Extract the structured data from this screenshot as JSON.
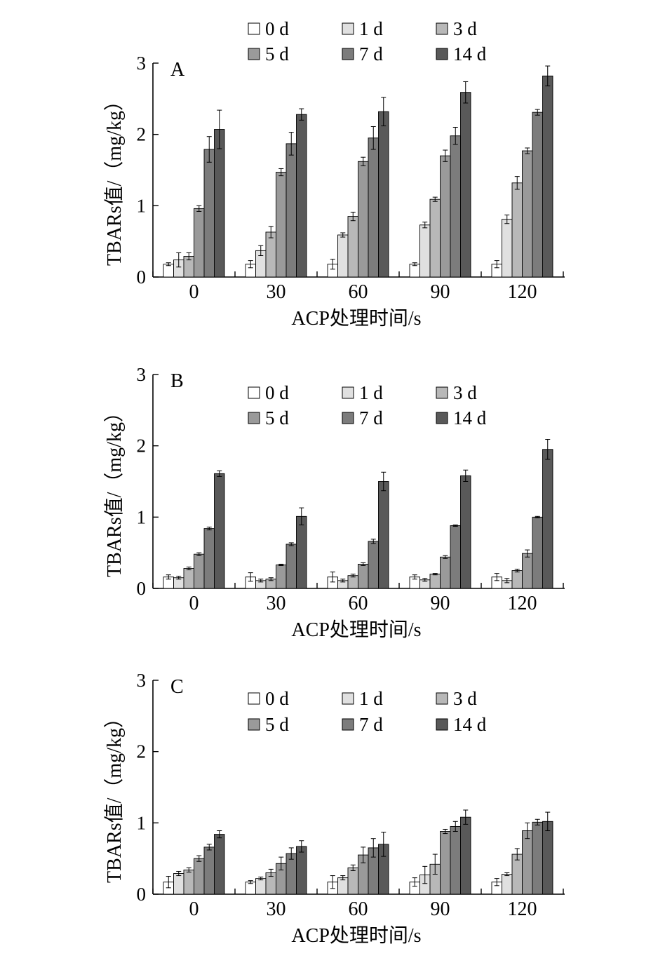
{
  "chart_data": [
    {
      "type": "bar",
      "panel_label": "A",
      "categories": [
        "0",
        "30",
        "60",
        "90",
        "120"
      ],
      "xlabel": "ACP处理时间/s",
      "ylabel": "TBARs值/（mg/kg）",
      "ylim": [
        0,
        3
      ],
      "yticks": [
        "0",
        "1",
        "2",
        "3"
      ],
      "legend_position": "top",
      "series": [
        {
          "name": "0 d",
          "color": "#ffffff",
          "values": [
            0.18,
            0.18,
            0.18,
            0.18,
            0.18
          ],
          "errors": [
            0.02,
            0.05,
            0.07,
            0.02,
            0.05
          ]
        },
        {
          "name": "1 d",
          "color": "#e0e0e0",
          "values": [
            0.24,
            0.37,
            0.59,
            0.73,
            0.81
          ],
          "errors": [
            0.1,
            0.07,
            0.03,
            0.04,
            0.06
          ]
        },
        {
          "name": "3 d",
          "color": "#b8b8b8",
          "values": [
            0.29,
            0.63,
            0.85,
            1.09,
            1.32
          ],
          "errors": [
            0.05,
            0.08,
            0.06,
            0.03,
            0.09
          ]
        },
        {
          "name": "5 d",
          "color": "#9a9a9a",
          "values": [
            0.96,
            1.47,
            1.62,
            1.7,
            1.77
          ],
          "errors": [
            0.04,
            0.05,
            0.06,
            0.08,
            0.04
          ]
        },
        {
          "name": "7 d",
          "color": "#7c7c7c",
          "values": [
            1.79,
            1.87,
            1.95,
            1.98,
            2.31
          ],
          "errors": [
            0.18,
            0.16,
            0.16,
            0.12,
            0.04
          ]
        },
        {
          "name": "14 d",
          "color": "#595959",
          "values": [
            2.07,
            2.28,
            2.32,
            2.59,
            2.82
          ],
          "errors": [
            0.27,
            0.08,
            0.2,
            0.15,
            0.14
          ]
        }
      ]
    },
    {
      "type": "bar",
      "panel_label": "B",
      "categories": [
        "0",
        "30",
        "60",
        "90",
        "120"
      ],
      "xlabel": "ACP处理时间/s",
      "ylabel": "TBARs值/（mg/kg）",
      "ylim": [
        0,
        3
      ],
      "yticks": [
        "0",
        "1",
        "2",
        "3"
      ],
      "legend_position": "top",
      "series": [
        {
          "name": "0 d",
          "color": "#ffffff",
          "values": [
            0.16,
            0.16,
            0.16,
            0.16,
            0.16
          ],
          "errors": [
            0.03,
            0.06,
            0.07,
            0.03,
            0.05
          ]
        },
        {
          "name": "1 d",
          "color": "#e0e0e0",
          "values": [
            0.15,
            0.11,
            0.11,
            0.12,
            0.11
          ],
          "errors": [
            0.02,
            0.02,
            0.02,
            0.02,
            0.03
          ]
        },
        {
          "name": "3 d",
          "color": "#b8b8b8",
          "values": [
            0.28,
            0.13,
            0.18,
            0.2,
            0.25
          ],
          "errors": [
            0.02,
            0.02,
            0.02,
            0.01,
            0.02
          ]
        },
        {
          "name": "5 d",
          "color": "#9a9a9a",
          "values": [
            0.48,
            0.33,
            0.34,
            0.44,
            0.49
          ],
          "errors": [
            0.02,
            0.01,
            0.02,
            0.02,
            0.05
          ]
        },
        {
          "name": "7 d",
          "color": "#7c7c7c",
          "values": [
            0.84,
            0.62,
            0.66,
            0.88,
            1.0
          ],
          "errors": [
            0.02,
            0.02,
            0.03,
            0.01,
            0.01
          ]
        },
        {
          "name": "14 d",
          "color": "#595959",
          "values": [
            1.61,
            1.01,
            1.5,
            1.58,
            1.95
          ],
          "errors": [
            0.04,
            0.12,
            0.13,
            0.08,
            0.14
          ]
        }
      ]
    },
    {
      "type": "bar",
      "panel_label": "C",
      "categories": [
        "0",
        "30",
        "60",
        "90",
        "120"
      ],
      "xlabel": "ACP处理时间/s",
      "ylabel": "TBARs值/（mg/kg）",
      "ylim": [
        0,
        3
      ],
      "yticks": [
        "0",
        "1",
        "2",
        "3"
      ],
      "legend_position": "top",
      "series": [
        {
          "name": "0 d",
          "color": "#ffffff",
          "values": [
            0.17,
            0.17,
            0.17,
            0.17,
            0.17
          ],
          "errors": [
            0.08,
            0.02,
            0.09,
            0.06,
            0.05
          ]
        },
        {
          "name": "1 d",
          "color": "#e0e0e0",
          "values": [
            0.29,
            0.22,
            0.23,
            0.27,
            0.28
          ],
          "errors": [
            0.03,
            0.02,
            0.03,
            0.12,
            0.02
          ]
        },
        {
          "name": "3 d",
          "color": "#b8b8b8",
          "values": [
            0.34,
            0.3,
            0.37,
            0.42,
            0.56
          ],
          "errors": [
            0.03,
            0.05,
            0.04,
            0.14,
            0.08
          ]
        },
        {
          "name": "5 d",
          "color": "#9a9a9a",
          "values": [
            0.5,
            0.43,
            0.55,
            0.88,
            0.89
          ],
          "errors": [
            0.04,
            0.09,
            0.11,
            0.03,
            0.11
          ]
        },
        {
          "name": "7 d",
          "color": "#7c7c7c",
          "values": [
            0.66,
            0.57,
            0.65,
            0.95,
            1.01
          ],
          "errors": [
            0.04,
            0.08,
            0.13,
            0.07,
            0.04
          ]
        },
        {
          "name": "14 d",
          "color": "#595959",
          "values": [
            0.84,
            0.67,
            0.7,
            1.08,
            1.02
          ],
          "errors": [
            0.05,
            0.08,
            0.17,
            0.1,
            0.13
          ]
        }
      ]
    }
  ]
}
